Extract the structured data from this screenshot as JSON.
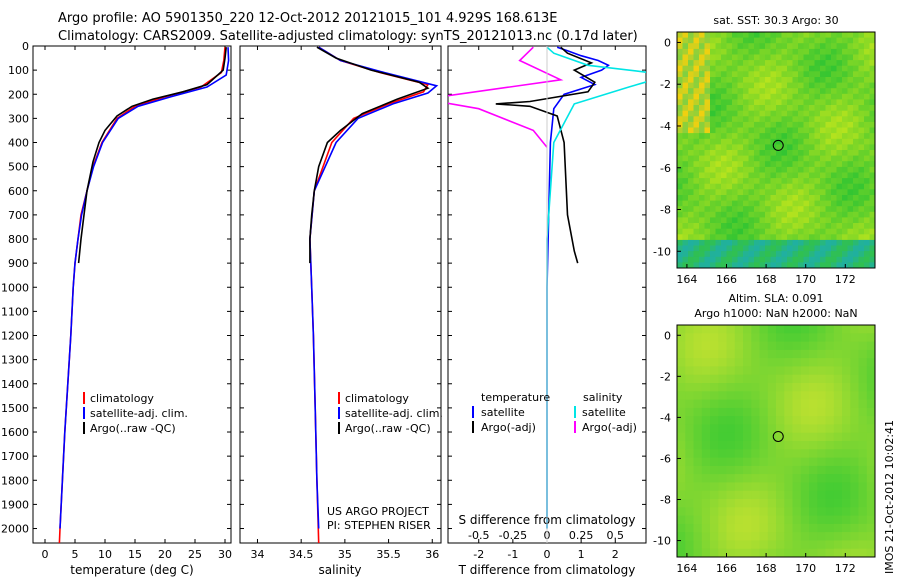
{
  "header": {
    "line1": "Argo profile: AO 5901350_220 12-Oct-2012 20121015_101 4.929S 168.613E",
    "line2": "Climatology: CARS2009. Satellite-adjusted climatology: synTS_20121013.nc (0.17d later)"
  },
  "colors": {
    "climatology": "#ff0000",
    "satellite": "#0000ff",
    "argo": "#000000",
    "salinity_satellite": "#00e5e5",
    "salinity_argo": "#ff00ff"
  },
  "chart_data": [
    {
      "type": "line",
      "panel": "temperature",
      "xlabel": "temperature (deg C)",
      "xlim": [
        -2,
        31
      ],
      "xticks": [
        0,
        5,
        10,
        15,
        20,
        25,
        30
      ],
      "ylim": [
        2060,
        0
      ],
      "yticks": [
        0,
        100,
        200,
        300,
        400,
        500,
        600,
        700,
        800,
        900,
        1000,
        1100,
        1200,
        1300,
        1400,
        1500,
        1600,
        1700,
        1800,
        1900,
        2000
      ],
      "legend": [
        "climatology",
        "satellite-adj. clim.",
        "Argo(..raw -QC)"
      ],
      "series": [
        {
          "name": "climatology",
          "points": [
            [
              30,
              5
            ],
            [
              29.8,
              60
            ],
            [
              29.4,
              110
            ],
            [
              26,
              170
            ],
            [
              20,
              210
            ],
            [
              15,
              250
            ],
            [
              12,
              300
            ],
            [
              9.5,
              400
            ],
            [
              8,
              500
            ],
            [
              7,
              600
            ],
            [
              6,
              700
            ],
            [
              5.5,
              800
            ],
            [
              5,
              900
            ],
            [
              4.7,
              1000
            ],
            [
              4.3,
              1200
            ],
            [
              3.8,
              1400
            ],
            [
              3.3,
              1600
            ],
            [
              2.9,
              1800
            ],
            [
              2.5,
              2000
            ],
            [
              2.4,
              2060
            ]
          ]
        },
        {
          "name": "satellite-adj. clim.",
          "points": [
            [
              30.5,
              5
            ],
            [
              30.6,
              60
            ],
            [
              30.2,
              120
            ],
            [
              27,
              170
            ],
            [
              21,
              210
            ],
            [
              15.5,
              250
            ],
            [
              12.2,
              300
            ],
            [
              9.6,
              400
            ],
            [
              8.1,
              500
            ],
            [
              7,
              600
            ],
            [
              6.1,
              700
            ],
            [
              5.5,
              800
            ],
            [
              5,
              900
            ],
            [
              4.7,
              1000
            ],
            [
              4.3,
              1200
            ],
            [
              3.8,
              1400
            ],
            [
              3.3,
              1600
            ],
            [
              2.9,
              1800
            ],
            [
              2.5,
              2000
            ]
          ]
        },
        {
          "name": "Argo(..raw -QC)",
          "points": [
            [
              30.2,
              5
            ],
            [
              30,
              50
            ],
            [
              29.7,
              100
            ],
            [
              27,
              160
            ],
            [
              23,
              190
            ],
            [
              18,
              220
            ],
            [
              14.5,
              250
            ],
            [
              12,
              290
            ],
            [
              10,
              350
            ],
            [
              9,
              400
            ],
            [
              8,
              480
            ],
            [
              7,
              600
            ],
            [
              6.5,
              700
            ],
            [
              6,
              800
            ],
            [
              5.6,
              900
            ]
          ]
        }
      ]
    },
    {
      "type": "line",
      "panel": "salinity",
      "xlabel": "salinity",
      "xlim": [
        33.8,
        36.1
      ],
      "xticks": [
        34,
        34.5,
        35,
        35.5,
        36
      ],
      "ylim": [
        2060,
        0
      ],
      "legend": [
        "climatology",
        "satellite-adj. clim.",
        "Argo(..raw -QC)"
      ],
      "series": [
        {
          "name": "climatology",
          "points": [
            [
              34.7,
              5
            ],
            [
              34.95,
              60
            ],
            [
              35.4,
              110
            ],
            [
              35.95,
              160
            ],
            [
              35.9,
              190
            ],
            [
              35.5,
              240
            ],
            [
              35.1,
              300
            ],
            [
              34.85,
              400
            ],
            [
              34.65,
              600
            ],
            [
              34.6,
              800
            ],
            [
              34.62,
              1000
            ],
            [
              34.64,
              1200
            ],
            [
              34.66,
              1500
            ],
            [
              34.68,
              1800
            ],
            [
              34.7,
              2060
            ]
          ]
        },
        {
          "name": "satellite-adj. clim.",
          "points": [
            [
              34.7,
              5
            ],
            [
              34.95,
              60
            ],
            [
              35.45,
              110
            ],
            [
              36.05,
              165
            ],
            [
              35.95,
              195
            ],
            [
              35.55,
              240
            ],
            [
              35.15,
              300
            ],
            [
              34.9,
              400
            ],
            [
              34.65,
              600
            ],
            [
              34.6,
              800
            ],
            [
              34.62,
              1000
            ],
            [
              34.64,
              1200
            ],
            [
              34.66,
              1500
            ],
            [
              34.68,
              1800
            ],
            [
              34.7,
              2000
            ]
          ]
        },
        {
          "name": "Argo(..raw -QC)",
          "points": [
            [
              34.68,
              5
            ],
            [
              34.9,
              50
            ],
            [
              35.3,
              100
            ],
            [
              35.85,
              150
            ],
            [
              35.95,
              175
            ],
            [
              35.6,
              220
            ],
            [
              35.2,
              280
            ],
            [
              34.95,
              350
            ],
            [
              34.8,
              400
            ],
            [
              34.7,
              500
            ],
            [
              34.65,
              600
            ],
            [
              34.62,
              700
            ],
            [
              34.6,
              800
            ],
            [
              34.6,
              900
            ]
          ]
        }
      ],
      "annotation": [
        "US ARGO PROJECT",
        "PI: STEPHEN RISER"
      ]
    },
    {
      "type": "line",
      "panel": "difference",
      "xlabel": "T difference from climatology",
      "xlabel_top": "S difference from climatology",
      "xlim_T": [
        -2.9,
        2.9
      ],
      "xticks_T": [
        -2,
        -1,
        0,
        1,
        2
      ],
      "xticks_S_labels": [
        "-0.5",
        "-0.25",
        "0",
        "0.25",
        "0.5"
      ],
      "ylim": [
        2060,
        0
      ],
      "legend": {
        "temperature": [
          "satellite",
          "Argo(-adj)"
        ],
        "salinity": [
          "satellite",
          "Argo(-adj)"
        ]
      },
      "series": [
        {
          "name": "temperature satellite",
          "points": [
            [
              0.3,
              5
            ],
            [
              0.6,
              20
            ],
            [
              1,
              40
            ],
            [
              1.5,
              60
            ],
            [
              1.8,
              80
            ],
            [
              1.6,
              100
            ],
            [
              1,
              130
            ],
            [
              1.4,
              160
            ],
            [
              0.5,
              200
            ],
            [
              0.2,
              260
            ],
            [
              0.1,
              400
            ],
            [
              0.05,
              700
            ],
            [
              0,
              1000
            ],
            [
              0,
              1500
            ],
            [
              0,
              2000
            ]
          ]
        },
        {
          "name": "temperature Argo(-adj)",
          "points": [
            [
              0.4,
              5
            ],
            [
              0.6,
              30
            ],
            [
              1.3,
              70
            ],
            [
              0.8,
              100
            ],
            [
              1.4,
              150
            ],
            [
              1.2,
              190
            ],
            [
              -0.5,
              230
            ],
            [
              -1.5,
              240
            ],
            [
              -0.5,
              250
            ],
            [
              0.3,
              290
            ],
            [
              0.5,
              400
            ],
            [
              0.6,
              700
            ],
            [
              0.8,
              850
            ],
            [
              0.9,
              900
            ]
          ]
        },
        {
          "name": "salinity satellite",
          "points": [
            [
              0,
              5
            ],
            [
              0.05,
              30
            ],
            [
              0.3,
              80
            ],
            [
              0.9,
              120
            ],
            [
              0.6,
              170
            ],
            [
              0.2,
              240
            ],
            [
              0.05,
              400
            ],
            [
              0,
              800
            ],
            [
              0,
              1500
            ],
            [
              0,
              2000
            ]
          ]
        },
        {
          "name": "salinity Argo(-adj)",
          "points": [
            [
              -0.1,
              5
            ],
            [
              -0.2,
              60
            ],
            [
              0.1,
              140
            ],
            [
              -0.9,
              220
            ],
            [
              -0.5,
              260
            ],
            [
              -0.1,
              350
            ],
            [
              0,
              420
            ]
          ]
        }
      ]
    },
    {
      "type": "heatmap",
      "panel": "map-sst",
      "title": "sat. SST: 30.3 Argo: 30",
      "xlim": [
        163.5,
        173.5
      ],
      "ylim": [
        -10.8,
        0.5
      ],
      "xticks": [
        164,
        166,
        168,
        170,
        172
      ],
      "yticks": [
        0,
        -2,
        -4,
        -6,
        -8,
        -10
      ],
      "marker": [
        168.613,
        -4.929
      ]
    },
    {
      "type": "heatmap",
      "panel": "map-sla",
      "title": "Altim. SLA: 0.091",
      "subtitle": "Argo h1000: NaN h2000: NaN",
      "xlim": [
        163.5,
        173.5
      ],
      "ylim": [
        -10.8,
        0.5
      ],
      "xticks": [
        164,
        166,
        168,
        170,
        172
      ],
      "yticks": [
        0,
        -2,
        -4,
        -6,
        -8,
        -10
      ],
      "marker": [
        168.613,
        -4.929
      ]
    }
  ],
  "footer_stamp": "IMOS 21-Oct-2012 10:02:41"
}
